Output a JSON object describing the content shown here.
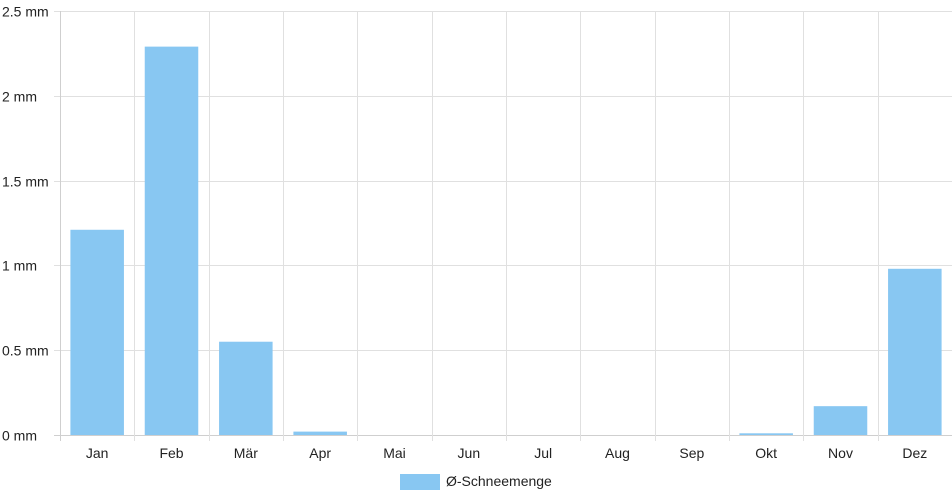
{
  "chart_data": {
    "type": "bar",
    "title": "",
    "xlabel": "",
    "ylabel": "",
    "unit": "mm",
    "categories": [
      "Jan",
      "Feb",
      "Mär",
      "Apr",
      "Mai",
      "Jun",
      "Jul",
      "Aug",
      "Sep",
      "Okt",
      "Nov",
      "Dez"
    ],
    "series": [
      {
        "name": "Ø-Schneemenge",
        "color": "#88c7f2",
        "values": [
          1.21,
          2.29,
          0.55,
          0.02,
          0,
          0,
          0,
          0,
          0,
          0.01,
          0.17,
          0.98
        ]
      }
    ],
    "ylim": [
      0,
      2.5
    ],
    "yticks": [
      {
        "value": 0,
        "label": "0 mm"
      },
      {
        "value": 0.5,
        "label": "0.5 mm"
      },
      {
        "value": 1,
        "label": "1 mm"
      },
      {
        "value": 1.5,
        "label": "1.5 mm"
      },
      {
        "value": 2,
        "label": "2 mm"
      },
      {
        "value": 2.5,
        "label": "2.5 mm"
      }
    ],
    "grid": true,
    "legend_position": "bottom"
  }
}
